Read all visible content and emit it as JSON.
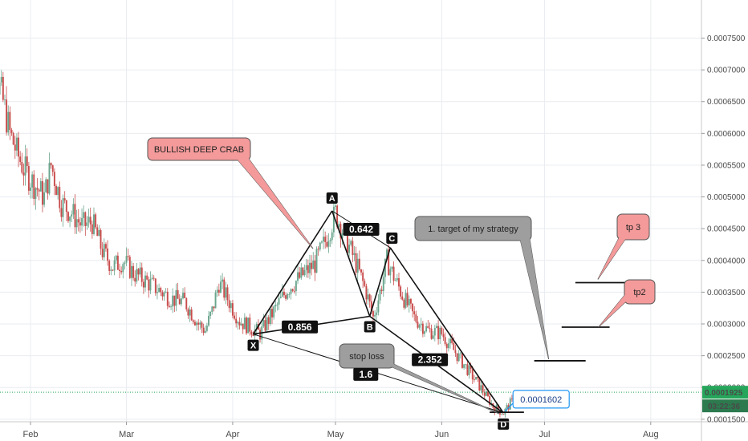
{
  "chart_data": {
    "type": "candlestick",
    "x_ticks": [
      "Feb",
      "Mar",
      "Apr",
      "May",
      "Jun",
      "Jul",
      "Aug"
    ],
    "y_ticks": [
      "0.0007500",
      "0.0007000",
      "0.0006500",
      "0.0006000",
      "0.0005500",
      "0.0005000",
      "0.0004500",
      "0.0004000",
      "0.0003500",
      "0.0003000",
      "0.0002500",
      "0.0002000",
      "0.0001500"
    ],
    "ylim": [
      0.000146,
      0.00081
    ],
    "price_series": [
      [
        "2018-01-18",
        0.0007
      ],
      [
        "2018-01-20",
        0.000755
      ],
      [
        "2018-01-22",
        0.00069
      ],
      [
        "2018-01-24",
        0.00065
      ],
      [
        "2018-01-26",
        0.0006
      ],
      [
        "2018-01-28",
        0.00057
      ],
      [
        "2018-01-30",
        0.000545
      ],
      [
        "2018-02-02",
        0.00052
      ],
      [
        "2018-02-05",
        0.0005
      ],
      [
        "2018-02-07",
        0.00055
      ],
      [
        "2018-02-10",
        0.00049
      ],
      [
        "2018-02-13",
        0.000475
      ],
      [
        "2018-02-16",
        0.000455
      ],
      [
        "2018-02-19",
        0.00046
      ],
      [
        "2018-02-22",
        0.000415
      ],
      [
        "2018-02-25",
        0.00039
      ],
      [
        "2018-02-28",
        0.0004
      ],
      [
        "2018-03-03",
        0.00038
      ],
      [
        "2018-03-06",
        0.00037
      ],
      [
        "2018-03-10",
        0.000355
      ],
      [
        "2018-03-14",
        0.00034
      ],
      [
        "2018-03-18",
        0.000335
      ],
      [
        "2018-03-22",
        0.0003
      ],
      [
        "2018-03-24",
        0.00029
      ],
      [
        "2018-03-26",
        0.00032
      ],
      [
        "2018-03-28",
        0.000365
      ],
      [
        "2018-03-31",
        0.000335
      ],
      [
        "2018-04-03",
        0.000305
      ],
      [
        "2018-04-06",
        0.000295
      ],
      [
        "2018-04-09",
        0.000285
      ],
      [
        "2018-04-13",
        0.00032
      ],
      [
        "2018-04-17",
        0.000355
      ],
      [
        "2018-04-21",
        0.000375
      ],
      [
        "2018-04-25",
        0.000395
      ],
      [
        "2018-04-28",
        0.00043
      ],
      [
        "2018-05-01",
        0.000475
      ],
      [
        "2018-05-04",
        0.000435
      ],
      [
        "2018-05-07",
        0.000395
      ],
      [
        "2018-05-10",
        0.00035
      ],
      [
        "2018-05-12",
        0.00031
      ],
      [
        "2018-05-14",
        0.00035
      ],
      [
        "2018-05-16",
        0.0004
      ],
      [
        "2018-05-18",
        0.000375
      ],
      [
        "2018-05-21",
        0.00034
      ],
      [
        "2018-05-24",
        0.00031
      ],
      [
        "2018-05-28",
        0.00029
      ],
      [
        "2018-06-01",
        0.000285
      ],
      [
        "2018-06-05",
        0.000255
      ],
      [
        "2018-06-09",
        0.000225
      ],
      [
        "2018-06-13",
        0.000195
      ],
      [
        "2018-06-16",
        0.00017
      ],
      [
        "2018-06-19",
        0.00016
      ],
      [
        "2018-06-21",
        0.000175
      ],
      [
        "2018-06-24",
        0.000185
      ]
    ],
    "harmonic_pattern": {
      "points": [
        {
          "label": "X",
          "date": "2018-04-07",
          "price": 0.000284
        },
        {
          "label": "A",
          "date": "2018-04-30",
          "price": 0.000478
        },
        {
          "label": "B",
          "date": "2018-05-11",
          "price": 0.000312
        },
        {
          "label": "C",
          "date": "2018-05-17",
          "price": 0.00042
        },
        {
          "label": "D",
          "date": "2018-06-19",
          "price": 0.00016
        }
      ],
      "ratios": [
        {
          "value": "0.642",
          "near": "A-C"
        },
        {
          "value": "0.856",
          "near": "X-B"
        },
        {
          "value": "2.352",
          "near": "B-D"
        },
        {
          "value": "1.6",
          "near": "X-D"
        }
      ]
    },
    "horizontal_segments": [
      {
        "name": "tp3",
        "price": 0.000365,
        "from": "2018-07-10",
        "to": "2018-07-25"
      },
      {
        "name": "tp2",
        "price": 0.000295,
        "from": "2018-07-06",
        "to": "2018-07-20"
      },
      {
        "name": "target-1",
        "price": 0.000242,
        "from": "2018-06-28",
        "to": "2018-07-13"
      },
      {
        "name": "stop-loss",
        "price": 0.000161,
        "from": "2018-06-15",
        "to": "2018-06-25"
      }
    ],
    "callouts": [
      {
        "text": "BULLISH DEEP CRAB",
        "bg": "#f49a9a"
      },
      {
        "text": "1. target of my strategy",
        "bg": "#9e9e9e"
      },
      {
        "text": "tp 3",
        "bg": "#f49a9a"
      },
      {
        "text": "tp2",
        "bg": "#f49a9a"
      },
      {
        "text": "stop loss",
        "bg": "#9e9e9e"
      }
    ],
    "current_price": "0.0001925",
    "countdown": "03:22:36",
    "price_annotation": "0.0001602",
    "colors": {
      "up": "#6aa58d",
      "down": "#c94c4c",
      "current": "#26a65b",
      "axis_label_blue": "#2196f3"
    }
  }
}
